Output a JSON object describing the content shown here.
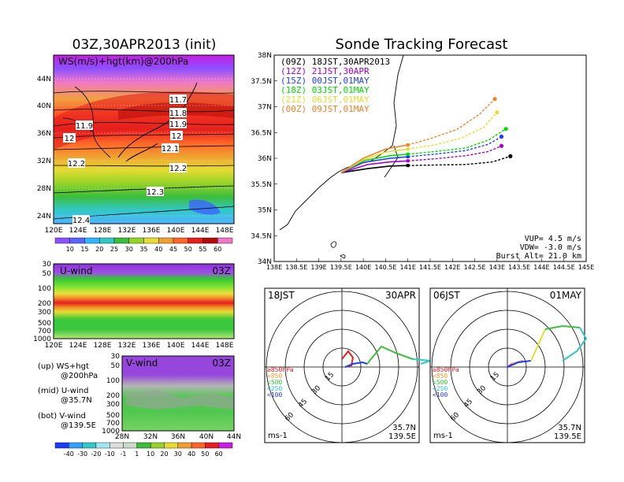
{
  "left_title": "03Z,30APR2013 (init)",
  "right_title": "Sonde Tracking Forecast",
  "map_panel": {
    "label": "WS(m/s)+hgt(km)@200hPa",
    "lat_ticks": [
      "44N",
      "40N",
      "36N",
      "32N",
      "28N",
      "24N"
    ],
    "lon_ticks": [
      "120E",
      "124E",
      "128E",
      "132E",
      "136E",
      "140E",
      "144E",
      "148E"
    ],
    "contour_labels": [
      "11.7",
      "11.8",
      "11.9",
      "11.9",
      "12",
      "12",
      "12.1",
      "12.2",
      "12.2",
      "12.3",
      "12.4"
    ]
  },
  "ws_colorbar": {
    "labels": [
      "10",
      "15",
      "20",
      "25",
      "30",
      "35",
      "40",
      "45",
      "50",
      "55",
      "60"
    ]
  },
  "u_panel": {
    "label": "U-wind",
    "time": "03Z",
    "p_ticks": [
      "30",
      "50",
      "100",
      "200",
      "300",
      "500",
      "700",
      "1000"
    ],
    "lon_ticks": [
      "120E",
      "124E",
      "128E",
      "132E",
      "136E",
      "140E",
      "144E",
      "148E"
    ]
  },
  "v_panel": {
    "label": "V-wind",
    "time": "03Z",
    "p_ticks": [
      "30",
      "50",
      "100",
      "200",
      "300",
      "500",
      "700",
      "1000"
    ],
    "lat_ticks": [
      "28N",
      "32N",
      "36N",
      "40N",
      "44N"
    ]
  },
  "legend_text": {
    "l1": "(up) WS+hgt",
    "l1b": "@200hPa",
    "l2": "(mid) U-wind",
    "l2b": "@35.7N",
    "l3": "(bot) V-wind",
    "l3b": "@139.5E"
  },
  "wind_colorbar": {
    "labels": [
      "-40",
      "-30",
      "-20",
      "-10",
      "-1",
      "1",
      "10",
      "20",
      "30",
      "40",
      "50",
      "60"
    ]
  },
  "track_panel": {
    "lat_ticks": [
      "38N",
      "37.5N",
      "37N",
      "36.5N",
      "36N",
      "35.5N",
      "35N",
      "34.5N",
      "34N"
    ],
    "lon_ticks": [
      "138E",
      "138.5E",
      "139E",
      "139.5E",
      "140E",
      "140.5E",
      "141E",
      "141.5E",
      "142E",
      "142.5E",
      "143E",
      "143.5E",
      "144E",
      "144.5E",
      "145E"
    ],
    "info": [
      "VUP= 4.5 m/s",
      "VDW= -3.0 m/s",
      "Burst Alt= 21.0 km"
    ]
  },
  "chart_data": {
    "type": "line",
    "xlabel": "",
    "ylabel": "",
    "xlim": [
      138,
      145
    ],
    "ylim": [
      34,
      38
    ],
    "series": [
      {
        "name": "(09Z) 18JST,30APR2013",
        "color": "#000000",
        "x": [
          139.5,
          140.1,
          140.6,
          141.0,
          141.6,
          142.3,
          142.9,
          143.3
        ],
        "y": [
          35.72,
          35.8,
          35.85,
          35.86,
          35.87,
          35.88,
          35.93,
          36.04
        ]
      },
      {
        "name": "(12Z) 21JST,30APR",
        "color": "#a000c8",
        "x": [
          139.5,
          140.1,
          140.6,
          141.0,
          141.6,
          142.3,
          142.8,
          143.1
        ],
        "y": [
          35.72,
          35.88,
          35.93,
          35.95,
          35.99,
          36.05,
          36.13,
          36.24
        ]
      },
      {
        "name": "(15Z) 00JST,01MAY",
        "color": "#1e3cff",
        "x": [
          139.5,
          140.0,
          140.6,
          141.0,
          141.6,
          142.3,
          142.8,
          143.1
        ],
        "y": [
          35.72,
          35.92,
          36.0,
          36.03,
          36.08,
          36.15,
          36.27,
          36.42
        ]
      },
      {
        "name": "(18Z) 03JST,01MAY",
        "color": "#00dc00",
        "x": [
          139.5,
          140.0,
          140.6,
          141.0,
          141.6,
          142.3,
          142.8,
          143.2
        ],
        "y": [
          35.72,
          35.95,
          36.05,
          36.08,
          36.13,
          36.2,
          36.35,
          36.57
        ]
      },
      {
        "name": "(21Z) 06JST,01MAY",
        "color": "#e6dc32",
        "x": [
          139.5,
          140.0,
          140.5,
          141.0,
          141.6,
          142.2,
          142.7,
          143.0
        ],
        "y": [
          35.72,
          35.97,
          36.12,
          36.18,
          36.26,
          36.39,
          36.6,
          36.89
        ]
      },
      {
        "name": "(00Z) 09JST,01MAY",
        "color": "#f08228",
        "x": [
          139.5,
          140.0,
          140.5,
          141.0,
          141.5,
          142.1,
          142.6,
          142.95
        ],
        "y": [
          35.72,
          36.0,
          36.18,
          36.26,
          36.38,
          36.56,
          36.85,
          37.15
        ]
      }
    ]
  },
  "hodo_left": {
    "time": "18JST",
    "date": "30APR",
    "levels": [
      "≥850hPa",
      "<850",
      "<500",
      "<250",
      "<100"
    ],
    "ring_labels": [
      "15",
      "30",
      "45",
      "60"
    ],
    "units": "ms-1",
    "loc1": "35.7N",
    "loc2": "139.5E"
  },
  "hodo_right": {
    "time": "06JST",
    "date": "01MAY",
    "levels": [
      "≥850hPa",
      "<850",
      "<500",
      "<250",
      "<100"
    ],
    "ring_labels": [
      "15",
      "30",
      "45",
      "60"
    ],
    "units": "ms-1",
    "loc1": "35.7N",
    "loc2": "139.5E"
  }
}
